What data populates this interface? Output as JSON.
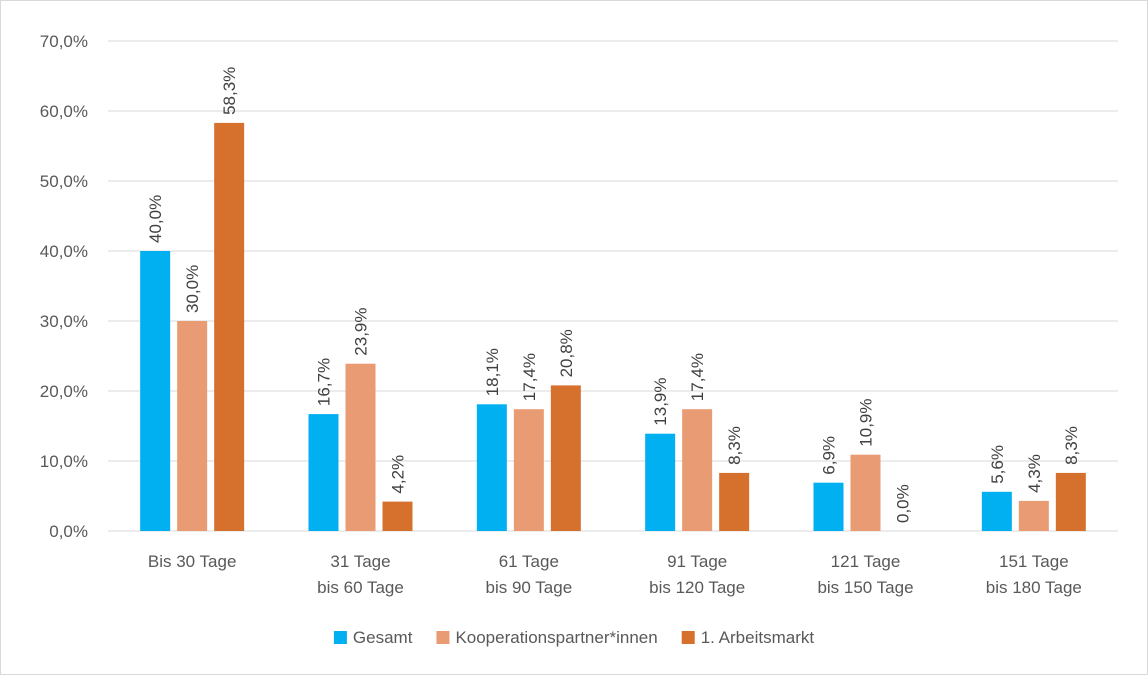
{
  "chart_data": {
    "type": "bar",
    "title": "",
    "xlabel": "",
    "ylabel": "",
    "ylim": [
      0,
      70
    ],
    "yticks": [
      0,
      10,
      20,
      30,
      40,
      50,
      60,
      70
    ],
    "ytick_labels": [
      "0,0%",
      "10,0%",
      "20,0%",
      "30,0%",
      "40,0%",
      "50,0%",
      "60,0%",
      "70,0%"
    ],
    "grid": true,
    "legend_position": "bottom",
    "categories": [
      [
        "Bis 30 Tage"
      ],
      [
        "31 Tage",
        "bis 60 Tage"
      ],
      [
        "61 Tage",
        "bis 90 Tage"
      ],
      [
        "91 Tage",
        "bis 120 Tage"
      ],
      [
        "121 Tage",
        "bis 150 Tage"
      ],
      [
        "151 Tage",
        "bis 180 Tage"
      ]
    ],
    "series": [
      {
        "name": "Gesamt",
        "color": "#00b0f0",
        "values": [
          40.0,
          16.7,
          18.1,
          13.9,
          6.9,
          5.6
        ],
        "labels": [
          "40,0%",
          "16,7%",
          "18,1%",
          "13,9%",
          "6,9%",
          "5,6%"
        ]
      },
      {
        "name": "Kooperationspartner*innen",
        "color": "#e99b74",
        "values": [
          30.0,
          23.9,
          17.4,
          17.4,
          10.9,
          4.3
        ],
        "labels": [
          "30,0%",
          "23,9%",
          "17,4%",
          "17,4%",
          "10,9%",
          "4,3%"
        ]
      },
      {
        "name": "1. Arbeitsmarkt",
        "color": "#d5702d",
        "values": [
          58.3,
          4.2,
          20.8,
          8.3,
          0.0,
          8.3
        ],
        "labels": [
          "58,3%",
          "4,2%",
          "20,8%",
          "8,3%",
          "0,0%",
          "8,3%"
        ]
      }
    ]
  }
}
